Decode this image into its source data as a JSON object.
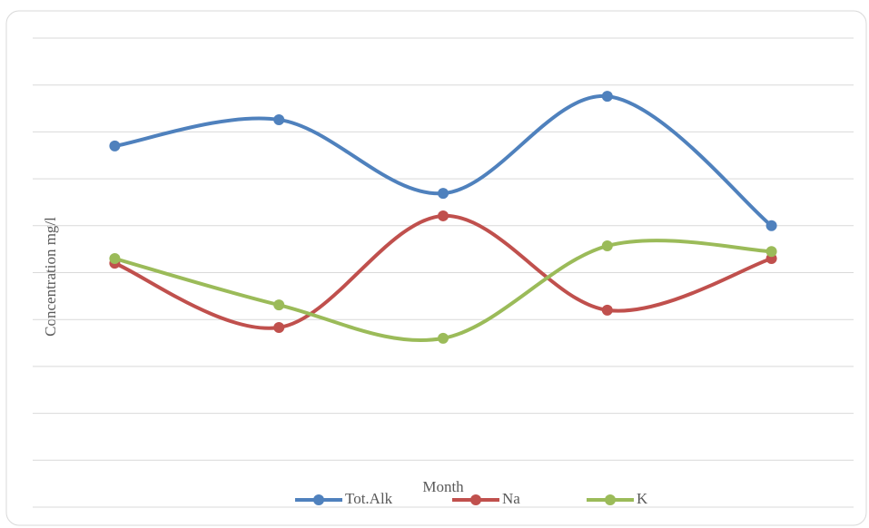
{
  "chart_data": {
    "type": "line",
    "x_label": "Month",
    "y_label": "Concentration mg/l",
    "categories": [
      null,
      null,
      null,
      null,
      null
    ],
    "series": [
      {
        "name": "Tot.Alk",
        "color": "#4f81bd",
        "values": [
          7.7,
          8.26,
          6.69,
          8.76,
          6.0
        ]
      },
      {
        "name": "Na",
        "color": "#c0504d",
        "values": [
          5.2,
          3.83,
          6.21,
          4.2,
          5.3
        ]
      },
      {
        "name": "K",
        "color": "#9bbb59",
        "values": [
          5.3,
          4.31,
          3.6,
          5.57,
          5.45
        ]
      }
    ],
    "ylim": [
      0,
      10
    ],
    "yticks": [
      0,
      1,
      2,
      3,
      4,
      5,
      6,
      7,
      8,
      9,
      10
    ],
    "grid": true,
    "smooth": true,
    "legend": "bottom"
  }
}
